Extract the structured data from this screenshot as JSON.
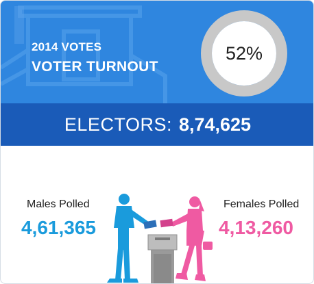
{
  "header": {
    "year_label": "2014 VOTES",
    "title": "VOTER TURNOUT"
  },
  "turnout": {
    "label": "52%",
    "fraction": 0.52
  },
  "electors": {
    "label": "ELECTORS:",
    "value": "8,74,625"
  },
  "males": {
    "label": "Males Polled",
    "value": "4,61,365"
  },
  "females": {
    "label": "Females Polled",
    "value": "4,13,260"
  },
  "colors": {
    "header_blue": "#2f86df",
    "band_blue": "#1a5bb8",
    "male_blue": "#1a9bdc",
    "female_pink": "#ef5aa2",
    "gauge_ring": "#c8c8c8"
  },
  "icons": [
    "ballot-box-background-icon",
    "male-voter-icon",
    "female-voter-icon",
    "ballot-box-icon"
  ]
}
